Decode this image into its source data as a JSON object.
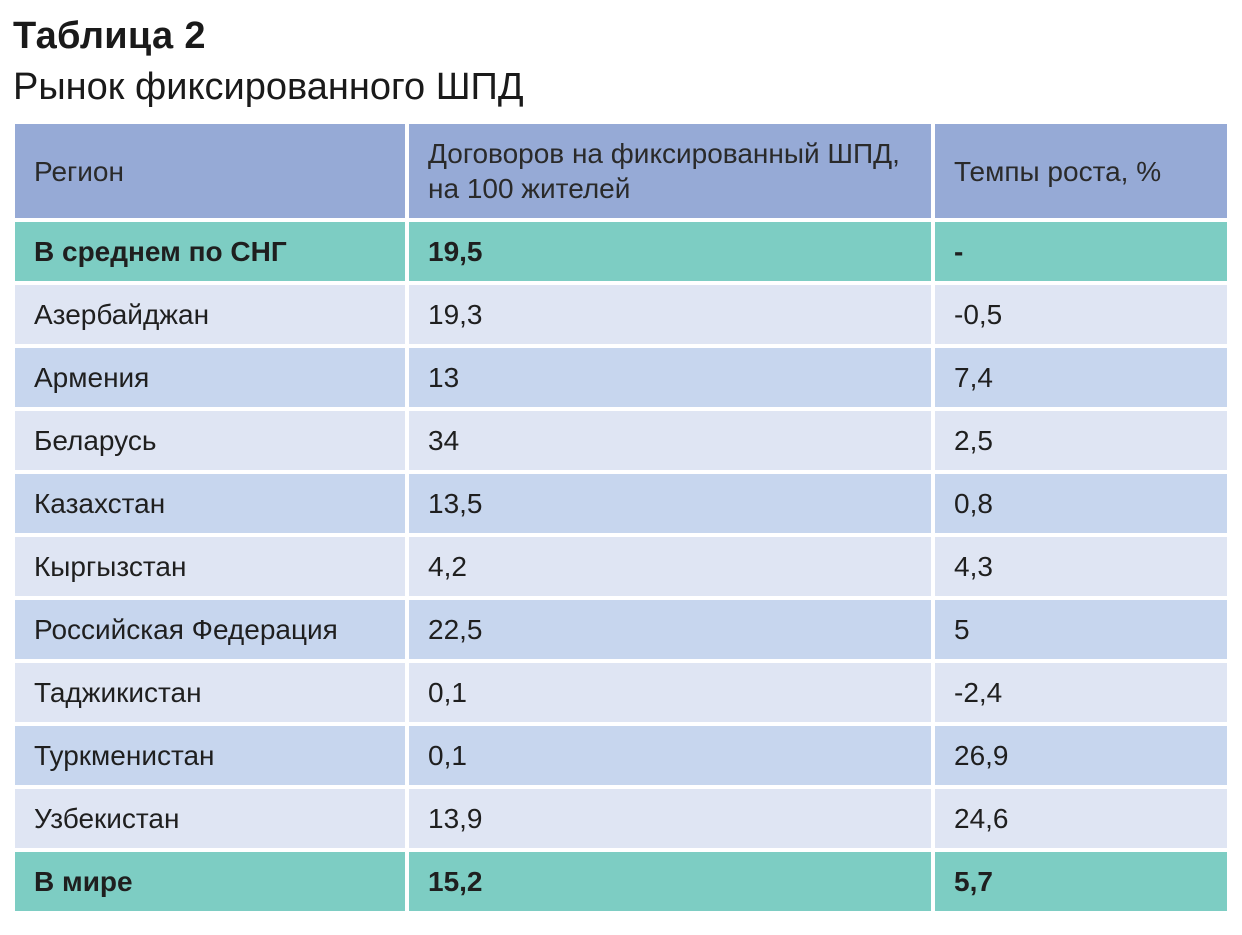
{
  "header": {
    "title": "Таблица 2",
    "subtitle": "Рынок фиксированного ШПД"
  },
  "table": {
    "columns": [
      "Регион",
      "Договоров на фиксированный ШПД, на 100 жителей",
      "Темпы роста, %"
    ],
    "rows": [
      [
        "В среднем по СНГ",
        "19,5",
        "-"
      ],
      [
        "Азербайджан",
        "19,3",
        "-0,5"
      ],
      [
        "Армения",
        "13",
        "7,4"
      ],
      [
        "Беларусь",
        "34",
        "2,5"
      ],
      [
        "Казахстан",
        "13,5",
        "0,8"
      ],
      [
        "Кыргызстан",
        "4,2",
        "4,3"
      ],
      [
        "Российская Федерация",
        "22,5",
        "5"
      ],
      [
        "Таджикистан",
        "0,1",
        "-2,4"
      ],
      [
        "Туркменистан",
        "0,1",
        "26,9"
      ],
      [
        "Узбекистан",
        "13,9",
        "24,6"
      ],
      [
        "В мире",
        "15,2",
        "5,7"
      ]
    ]
  },
  "colors": {
    "header_bg": "#96aad6",
    "summary_bg": "#7dcdc3",
    "row_light_bg": "#dfe5f3",
    "row_dark_bg": "#c7d6ee"
  }
}
